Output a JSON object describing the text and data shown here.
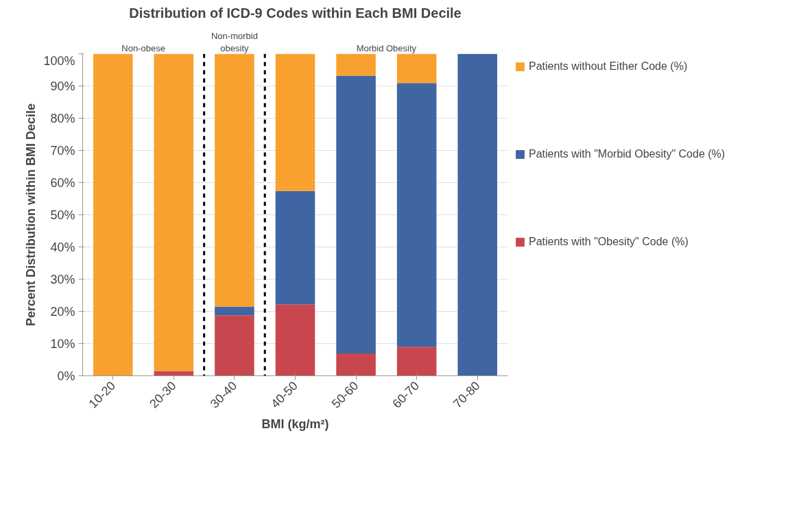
{
  "chart_data": {
    "type": "bar",
    "title": "Distribution of ICD-9 Codes within Each BMI Decile",
    "xlabel": "BMI (kg/m²)",
    "ylabel": "Percent Distribution within BMI Decile",
    "categories": [
      "10-20",
      "20-30",
      "30-40",
      "40-50",
      "50-60",
      "60-70",
      "70-80"
    ],
    "stacked": true,
    "series": [
      {
        "name": "Patients with \"Obesity\" Code (%)",
        "color": "#c8474f",
        "values": [
          0,
          1.5,
          18.8,
          22.2,
          6.9,
          9.0,
          0
        ]
      },
      {
        "name": "Patients with \"Morbid Obesity\" Code (%)",
        "color": "#3f65a3",
        "values": [
          0,
          0,
          2.7,
          35.2,
          86.3,
          81.9,
          100
        ]
      },
      {
        "name": "Patients without Either Code (%)",
        "color": "#f9a12e",
        "values": [
          100,
          98.5,
          78.5,
          42.6,
          6.8,
          9.1,
          0
        ]
      }
    ],
    "ylim": [
      0,
      100
    ],
    "yticks": [
      {
        "value": 0,
        "label": "0%"
      },
      {
        "value": 10,
        "label": "10%"
      },
      {
        "value": 20,
        "label": "20%"
      },
      {
        "value": 30,
        "label": "30%"
      },
      {
        "value": 40,
        "label": "40%"
      },
      {
        "value": 50,
        "label": "50%"
      },
      {
        "value": 60,
        "label": "60%"
      },
      {
        "value": 70,
        "label": "70%"
      },
      {
        "value": 80,
        "label": "80%"
      },
      {
        "value": 90,
        "label": "90%"
      },
      {
        "value": 100,
        "label": "100%"
      }
    ],
    "grid": "y",
    "legend": "right",
    "annotations": [
      "Non-obese",
      "Non-morbid\nobesity",
      "Morbid Obesity"
    ]
  }
}
